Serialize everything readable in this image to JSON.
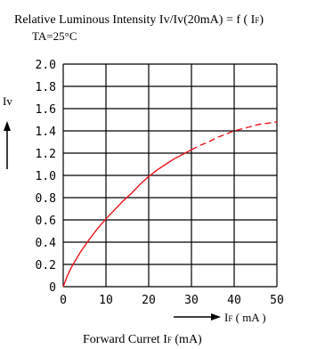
{
  "chart_data": {
    "type": "line",
    "title": "Relative Luminous Intensity  Iv/Iv(20mA) = f ( I",
    "title_sub": "F",
    "title_end": ")",
    "condition": "TA=25°C",
    "ylabel": "Iv",
    "xlabel_arrow_main": "I",
    "xlabel_arrow_sub": "F",
    "xlabel_arrow_unit": " ( mA )",
    "xlabel_bottom_main": "Forward  Curret  I",
    "xlabel_bottom_sub": "F",
    "xlabel_bottom_unit": " (mA)",
    "xlim": [
      0,
      50
    ],
    "ylim": [
      0,
      2.0
    ],
    "xticks": [
      "0",
      "10",
      "20",
      "30",
      "40",
      "50"
    ],
    "yticks": [
      "0",
      "0.2",
      "0.4",
      "0.6",
      "0.8",
      "1.0",
      "1.2",
      "1.4",
      "1.6",
      "1.8",
      "2.0"
    ],
    "grid": true,
    "series": [
      {
        "style": "solid",
        "color": "#e8141b",
        "x": [
          0,
          1,
          2,
          4,
          6,
          8,
          10,
          12,
          14,
          16,
          18,
          20,
          22,
          24,
          26,
          28,
          30
        ],
        "y": [
          0,
          0.1,
          0.18,
          0.31,
          0.42,
          0.52,
          0.61,
          0.69,
          0.77,
          0.84,
          0.92,
          0.99,
          1.05,
          1.1,
          1.15,
          1.19,
          1.23
        ]
      },
      {
        "style": "dashed",
        "color": "#e8141b",
        "x": [
          30,
          32,
          34,
          36,
          38,
          40,
          42,
          44,
          46,
          48,
          50
        ],
        "y": [
          1.23,
          1.27,
          1.3,
          1.34,
          1.37,
          1.4,
          1.42,
          1.44,
          1.46,
          1.47,
          1.48
        ]
      }
    ]
  }
}
